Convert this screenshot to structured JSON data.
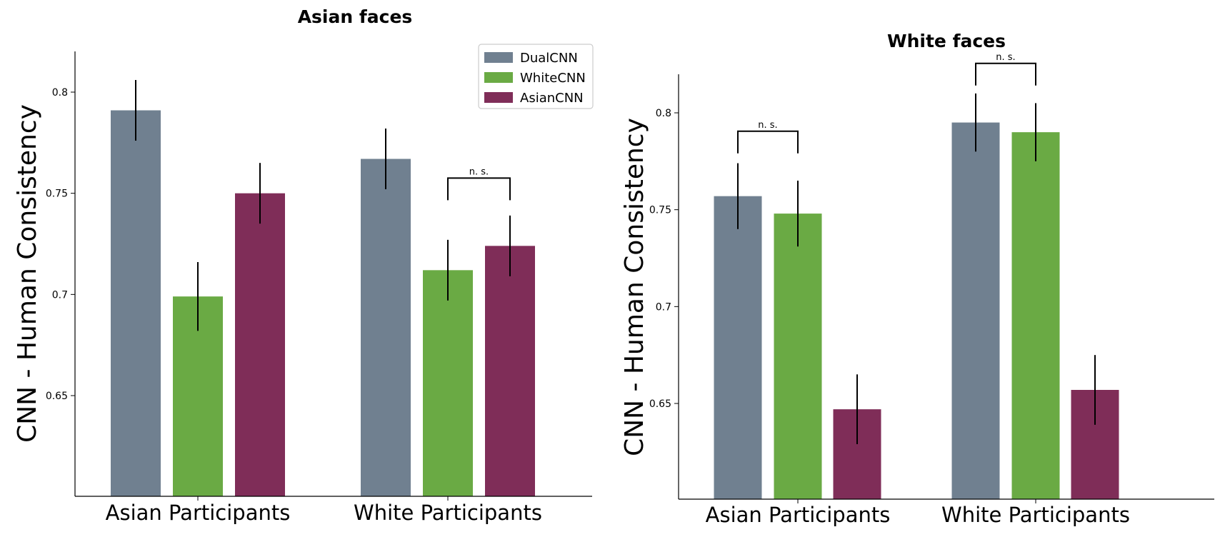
{
  "chart_data": [
    {
      "type": "bar",
      "title": "Asian faces",
      "ylabel": "CNN - Human Consistency",
      "ylim": [
        0.6,
        0.82
      ],
      "yticks": [
        0.65,
        0.7,
        0.75,
        0.8
      ],
      "categories": [
        "Asian Participants",
        "White Participants"
      ],
      "series": [
        {
          "name": "DualCNN",
          "color": "#708090",
          "values": [
            0.791,
            0.767
          ],
          "errors": [
            0.015,
            0.015
          ]
        },
        {
          "name": "WhiteCNN",
          "color": "#6aaa44",
          "values": [
            0.699,
            0.712
          ],
          "errors": [
            0.017,
            0.015
          ]
        },
        {
          "name": "AsianCNN",
          "color": "#7f2d58",
          "values": [
            0.75,
            0.724
          ],
          "errors": [
            0.015,
            0.015
          ]
        }
      ],
      "legend": {
        "show": true,
        "placement": "top-right"
      },
      "annotations": [
        {
          "text": "n. s.",
          "category": 1,
          "from_series": 1,
          "to_series": 2,
          "level": 0.7575
        }
      ]
    },
    {
      "type": "bar",
      "title": "White faces",
      "ylabel": "CNN - Human Consistency",
      "ylim": [
        0.6,
        0.82
      ],
      "yticks": [
        0.65,
        0.7,
        0.75,
        0.8
      ],
      "categories": [
        "Asian Participants",
        "White Participants"
      ],
      "series": [
        {
          "name": "DualCNN",
          "color": "#708090",
          "values": [
            0.757,
            0.795
          ],
          "errors": [
            0.017,
            0.015
          ]
        },
        {
          "name": "WhiteCNN",
          "color": "#6aaa44",
          "values": [
            0.748,
            0.79
          ],
          "errors": [
            0.017,
            0.015
          ]
        },
        {
          "name": "AsianCNN",
          "color": "#7f2d58",
          "values": [
            0.647,
            0.657
          ],
          "errors": [
            0.018,
            0.018
          ]
        }
      ],
      "legend": {
        "show": false
      },
      "annotations": [
        {
          "text": "n. s.",
          "category": 0,
          "from_series": 0,
          "to_series": 1,
          "level": 0.7905
        },
        {
          "text": "n. s.",
          "category": 1,
          "from_series": 0,
          "to_series": 1,
          "level": 0.8255
        }
      ]
    }
  ]
}
